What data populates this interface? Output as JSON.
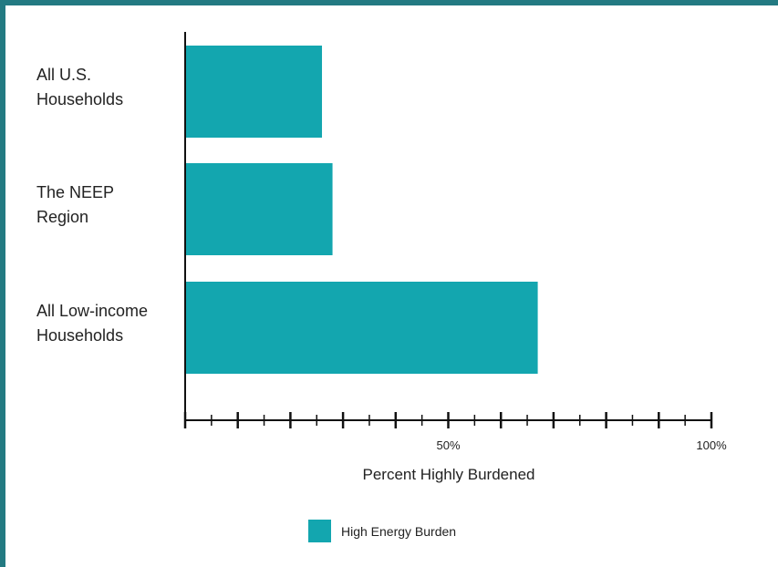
{
  "chart_data": {
    "type": "bar",
    "orientation": "horizontal",
    "categories": [
      [
        "All U.S.",
        "Households"
      ],
      [
        "The NEEP",
        "Region"
      ],
      [
        "All Low-income",
        "Households"
      ]
    ],
    "series": [
      {
        "name": "High Energy Burden",
        "values": [
          26,
          28,
          67
        ]
      }
    ],
    "xlabel": "Percent Highly Burdened",
    "xlim": [
      0,
      100
    ],
    "xticks_labeled": [
      {
        "value": 50,
        "label": "50%"
      },
      {
        "value": 100,
        "label": "100%"
      }
    ],
    "major_tick_step": 10,
    "minor_tick_step": 5,
    "legend_position": "bottom-center",
    "colors": {
      "bar": "#13a6af",
      "bar_edge": "#0f9aa3",
      "frame": "#237a82",
      "axis": "#111111"
    }
  }
}
